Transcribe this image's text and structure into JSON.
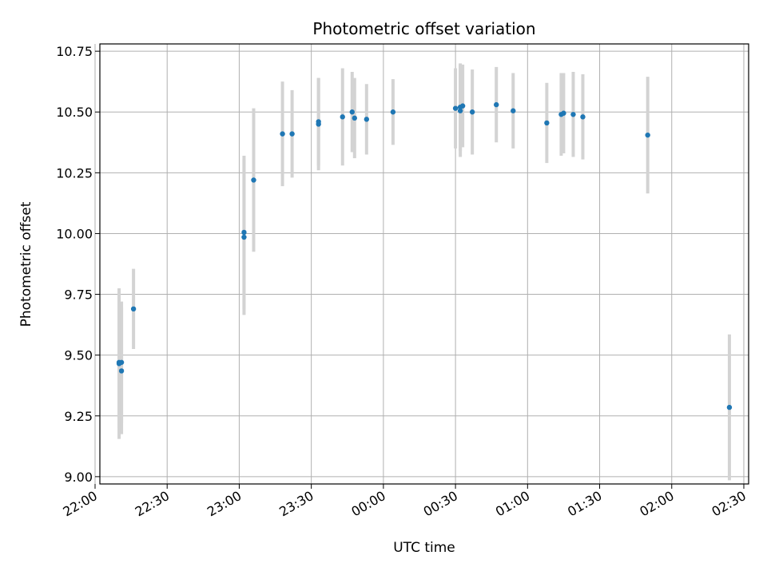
{
  "chart_data": {
    "type": "scatter",
    "title": "Photometric offset variation",
    "xlabel": "UTC time",
    "ylabel": "Photometric offset",
    "grid": true,
    "xlim": [
      "22:02",
      "02:32"
    ],
    "ylim": [
      8.97,
      10.78
    ],
    "x_ticks": [
      "22:00",
      "22:30",
      "23:00",
      "23:30",
      "00:00",
      "00:30",
      "01:00",
      "01:30",
      "02:00",
      "02:30"
    ],
    "y_ticks": [
      "9.00",
      "9.25",
      "9.50",
      "9.75",
      "10.00",
      "10.25",
      "10.50",
      "10.75"
    ],
    "colors": {
      "points": "#1f77b4",
      "error_bars": "#d3d3d3",
      "grid": "#b0b0b0"
    },
    "series": [
      {
        "points": [
          {
            "x": "22:10",
            "y": 9.465,
            "err": 0.31
          },
          {
            "x": "22:10",
            "y": 9.47,
            "err": 0.27
          },
          {
            "x": "22:11",
            "y": 9.47,
            "err": 0.25
          },
          {
            "x": "22:11",
            "y": 9.435,
            "err": 0.26
          },
          {
            "x": "22:16",
            "y": 9.69,
            "err": 0.165
          },
          {
            "x": "23:02",
            "y": 9.985,
            "err": 0.32
          },
          {
            "x": "23:02",
            "y": 10.005,
            "err": 0.315
          },
          {
            "x": "23:06",
            "y": 10.22,
            "err": 0.295
          },
          {
            "x": "23:18",
            "y": 10.41,
            "err": 0.215
          },
          {
            "x": "23:22",
            "y": 10.41,
            "err": 0.18
          },
          {
            "x": "23:33",
            "y": 10.46,
            "err": 0.18
          },
          {
            "x": "23:33",
            "y": 10.45,
            "err": 0.19
          },
          {
            "x": "23:43",
            "y": 10.48,
            "err": 0.2
          },
          {
            "x": "23:47",
            "y": 10.5,
            "err": 0.165
          },
          {
            "x": "23:48",
            "y": 10.475,
            "err": 0.165
          },
          {
            "x": "23:53",
            "y": 10.47,
            "err": 0.145
          },
          {
            "x": "00:04",
            "y": 10.5,
            "err": 0.135
          },
          {
            "x": "00:30",
            "y": 10.515,
            "err": 0.165
          },
          {
            "x": "00:32",
            "y": 10.505,
            "err": 0.19
          },
          {
            "x": "00:32",
            "y": 10.52,
            "err": 0.18
          },
          {
            "x": "00:33",
            "y": 10.525,
            "err": 0.17
          },
          {
            "x": "00:37",
            "y": 10.5,
            "err": 0.175
          },
          {
            "x": "00:47",
            "y": 10.53,
            "err": 0.155
          },
          {
            "x": "00:54",
            "y": 10.505,
            "err": 0.155
          },
          {
            "x": "01:08",
            "y": 10.455,
            "err": 0.165
          },
          {
            "x": "01:14",
            "y": 10.49,
            "err": 0.17
          },
          {
            "x": "01:15",
            "y": 10.495,
            "err": 0.165
          },
          {
            "x": "01:19",
            "y": 10.49,
            "err": 0.175
          },
          {
            "x": "01:23",
            "y": 10.48,
            "err": 0.175
          },
          {
            "x": "01:50",
            "y": 10.405,
            "err": 0.24
          },
          {
            "x": "02:24",
            "y": 9.285,
            "err": 0.3
          }
        ]
      }
    ]
  }
}
